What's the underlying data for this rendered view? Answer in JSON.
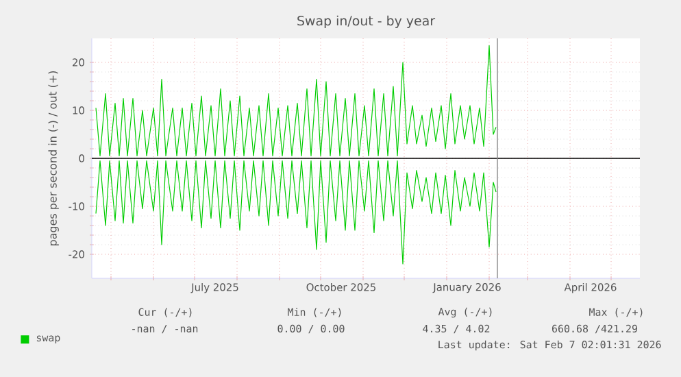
{
  "chart_data": {
    "type": "line",
    "title": "Swap in/out - by year",
    "ylabel": "pages per second in (-) / out (+)",
    "xlim": [
      "2025-04-17",
      "2026-05-22"
    ],
    "ylim": [
      -25,
      25
    ],
    "yticks": [
      -20,
      -10,
      0,
      10,
      20
    ],
    "xticks": [
      {
        "value": "2025-05-01",
        "label": null
      },
      {
        "value": "2025-06-01",
        "label": null
      },
      {
        "value": "2025-07-01",
        "label": null
      },
      {
        "value": "2025-08-01",
        "label": null
      },
      {
        "value": "2025-09-01",
        "label": null
      },
      {
        "value": "2025-10-01",
        "label": null
      },
      {
        "value": "2025-11-01",
        "label": null
      },
      {
        "value": "2025-12-01",
        "label": null
      },
      {
        "value": "2026-01-01",
        "label": null
      },
      {
        "value": "2026-02-01",
        "label": null
      },
      {
        "value": "2026-03-01",
        "label": null
      },
      {
        "value": "2026-04-01",
        "label": null
      },
      {
        "value": "2026-05-01",
        "label": null
      },
      {
        "value": "2025-07-16",
        "label": "July 2025"
      },
      {
        "value": "2025-10-16",
        "label": "October 2025"
      },
      {
        "value": "2026-01-16",
        "label": "January 2026"
      },
      {
        "value": "2026-04-16",
        "label": "April 2026"
      }
    ],
    "grid": true,
    "legend": "bottom",
    "x": [
      "2025-04-20",
      "2025-04-23",
      "2025-04-27",
      "2025-04-30",
      "2025-05-04",
      "2025-05-07",
      "2025-05-10",
      "2025-05-13",
      "2025-05-17",
      "2025-05-20",
      "2025-05-24",
      "2025-05-27",
      "2025-06-01",
      "2025-06-04",
      "2025-06-07",
      "2025-06-10",
      "2025-06-15",
      "2025-06-18",
      "2025-06-22",
      "2025-06-25",
      "2025-06-29",
      "2025-07-02",
      "2025-07-06",
      "2025-07-09",
      "2025-07-13",
      "2025-07-16",
      "2025-07-20",
      "2025-07-23",
      "2025-07-27",
      "2025-07-30",
      "2025-08-03",
      "2025-08-06",
      "2025-08-10",
      "2025-08-13",
      "2025-08-17",
      "2025-08-20",
      "2025-08-24",
      "2025-08-27",
      "2025-08-31",
      "2025-09-03",
      "2025-09-07",
      "2025-09-10",
      "2025-09-14",
      "2025-09-17",
      "2025-09-21",
      "2025-09-24",
      "2025-09-28",
      "2025-10-01",
      "2025-10-05",
      "2025-10-08",
      "2025-10-12",
      "2025-10-15",
      "2025-10-19",
      "2025-10-22",
      "2025-10-26",
      "2025-10-29",
      "2025-11-02",
      "2025-11-05",
      "2025-11-09",
      "2025-11-12",
      "2025-11-16",
      "2025-11-19",
      "2025-11-23",
      "2025-11-26",
      "2025-11-30",
      "2025-12-03",
      "2025-12-07",
      "2025-12-10",
      "2025-12-14",
      "2025-12-17",
      "2025-12-21",
      "2025-12-24",
      "2025-12-28",
      "2025-12-31",
      "2026-01-04",
      "2026-01-07",
      "2026-01-11",
      "2026-01-14",
      "2026-01-18",
      "2026-01-21",
      "2026-01-25",
      "2026-01-28",
      "2026-02-01",
      "2026-02-04",
      "2026-02-06"
    ],
    "series": [
      {
        "name": "swap",
        "color": "#00cc00",
        "values": [
          10.5,
          0.5,
          13.5,
          0.5,
          11.5,
          0.5,
          12.5,
          0.5,
          12.5,
          0.5,
          10,
          0.5,
          10.5,
          0.5,
          16.5,
          0.5,
          10.5,
          0.5,
          10.5,
          0.5,
          11.5,
          0.5,
          13,
          0.5,
          11,
          0.5,
          14.5,
          0.5,
          12,
          0.5,
          13,
          0.5,
          10.5,
          0.5,
          11,
          0.5,
          13.5,
          0.5,
          10.5,
          0.5,
          11,
          0.5,
          11.5,
          0.5,
          14.5,
          0.5,
          16.5,
          0.5,
          16,
          0.5,
          13.5,
          0.5,
          12.5,
          0.5,
          13.5,
          0.5,
          11,
          0.5,
          14.5,
          0.5,
          13.5,
          0.5,
          15,
          0.5,
          20,
          3,
          11,
          3,
          9,
          2.5,
          10.5,
          3.5,
          11,
          2,
          13.5,
          3,
          11,
          4,
          11,
          3,
          10.5,
          2.5,
          23.5,
          5,
          6.5
        ]
      },
      {
        "color": "#00cc00",
        "values": [
          -11.5,
          -0.5,
          -14,
          -0.5,
          -13,
          -0.5,
          -13.5,
          -0.5,
          -13.5,
          -0.5,
          -10.5,
          -0.5,
          -11,
          -0.5,
          -18,
          -0.5,
          -11,
          -0.5,
          -11,
          -0.5,
          -13,
          -0.5,
          -14.5,
          -0.5,
          -12.5,
          -0.5,
          -14.5,
          -0.5,
          -12.5,
          -0.5,
          -15,
          -0.5,
          -11,
          -0.5,
          -12,
          -0.5,
          -14,
          -0.5,
          -12,
          -0.5,
          -12.5,
          -0.5,
          -11.5,
          -0.5,
          -14.5,
          -0.5,
          -19,
          -0.5,
          -17.5,
          -0.5,
          -13,
          -0.5,
          -15,
          -0.5,
          -15,
          -0.5,
          -11,
          -0.5,
          -15.5,
          -0.5,
          -13,
          -0.5,
          -12,
          -0.5,
          -22,
          -3,
          -10.5,
          -2.5,
          -9,
          -4,
          -11.5,
          -3,
          -11.5,
          -3.5,
          -14,
          -2.5,
          -11,
          -4,
          -10,
          -3,
          -11,
          -3,
          -18.5,
          -5,
          -7
        ]
      }
    ],
    "ref_lines": [
      {
        "axis": "y",
        "value": 0,
        "color": "#000000"
      },
      {
        "axis": "x",
        "value": "2026-02-07",
        "color": "#888888"
      }
    ],
    "annotations": [
      "Cur (-/+)",
      "Min (-/+)",
      "Avg (-/+)",
      "Max (-/+)",
      "-nan / -nan",
      "0.00 / 0.00",
      "4.35 / 4.02",
      "660.68 /421.29",
      "Last update: Sat Feb 7 02:01:31 2026"
    ]
  }
}
